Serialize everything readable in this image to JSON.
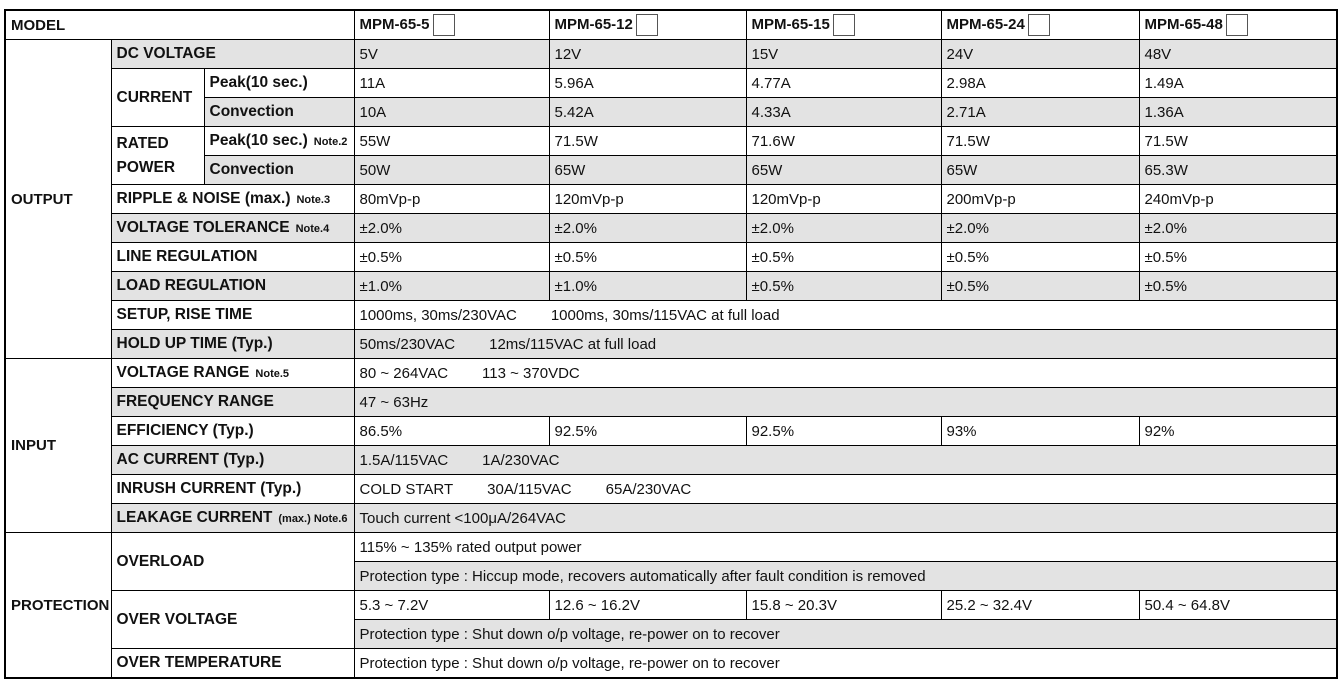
{
  "table": {
    "model_label": "MODEL",
    "models": [
      "MPM-65-5",
      "MPM-65-12",
      "MPM-65-15",
      "MPM-65-24",
      "MPM-65-48"
    ],
    "sections": [
      {
        "name": "OUTPUT",
        "items": [
          {
            "label": "DC VOLTAGE",
            "values": [
              "5V",
              "12V",
              "15V",
              "24V",
              "48V"
            ]
          },
          {
            "group": "CURRENT",
            "rows": [
              {
                "label": "Peak(10 sec.)",
                "values": [
                  "11A",
                  "5.96A",
                  "4.77A",
                  "2.98A",
                  "1.49A"
                ]
              },
              {
                "label": "Convection",
                "values": [
                  "10A",
                  "5.42A",
                  "4.33A",
                  "2.71A",
                  "1.36A"
                ]
              }
            ]
          },
          {
            "group": "RATED POWER",
            "rows": [
              {
                "label": "Peak(10 sec.)",
                "note": "Note.2",
                "values": [
                  "55W",
                  "71.5W",
                  "71.6W",
                  "71.5W",
                  "71.5W"
                ]
              },
              {
                "label": "Convection",
                "values": [
                  "50W",
                  "65W",
                  "65W",
                  "65W",
                  "65.3W"
                ]
              }
            ]
          },
          {
            "label": "RIPPLE & NOISE (max.)",
            "note": "Note.3",
            "values": [
              "80mVp-p",
              "120mVp-p",
              "120mVp-p",
              "200mVp-p",
              "240mVp-p"
            ]
          },
          {
            "label": "VOLTAGE TOLERANCE",
            "note": "Note.4",
            "values": [
              "±2.0%",
              "±2.0%",
              "±2.0%",
              "±2.0%",
              "±2.0%"
            ]
          },
          {
            "label": "LINE REGULATION",
            "values": [
              "±0.5%",
              "±0.5%",
              "±0.5%",
              "±0.5%",
              "±0.5%"
            ]
          },
          {
            "label": "LOAD REGULATION",
            "values": [
              "±1.0%",
              "±1.0%",
              "±0.5%",
              "±0.5%",
              "±0.5%"
            ]
          },
          {
            "label": "SETUP, RISE TIME",
            "parts": [
              "1000ms, 30ms/230VAC",
              "1000ms, 30ms/115VAC at full load"
            ]
          },
          {
            "label": "HOLD UP TIME (Typ.)",
            "parts": [
              "50ms/230VAC",
              "12ms/115VAC at full load"
            ]
          }
        ]
      },
      {
        "name": "INPUT",
        "items": [
          {
            "label": "VOLTAGE RANGE",
            "note": "Note.5",
            "parts": [
              "80 ~ 264VAC",
              "113 ~ 370VDC"
            ]
          },
          {
            "label": "FREQUENCY RANGE",
            "parts": [
              "47 ~ 63Hz"
            ]
          },
          {
            "label": "EFFICIENCY (Typ.)",
            "values": [
              "86.5%",
              "92.5%",
              "92.5%",
              "93%",
              "92%"
            ]
          },
          {
            "label": "AC CURRENT (Typ.)",
            "parts": [
              "1.5A/115VAC",
              "1A/230VAC"
            ]
          },
          {
            "label": "INRUSH CURRENT (Typ.)",
            "parts": [
              "COLD START",
              "30A/115VAC",
              "65A/230VAC"
            ]
          },
          {
            "label": "LEAKAGE CURRENT",
            "note": "(max.) Note.6",
            "parts": [
              "Touch current <100μA/264VAC"
            ]
          }
        ]
      },
      {
        "name": "PROTECTION",
        "items": [
          {
            "group": "OVERLOAD",
            "lines": [
              {
                "parts": [
                  "115% ~ 135% rated output power"
                ]
              },
              {
                "parts": [
                  "Protection type : Hiccup mode, recovers automatically after fault condition is removed"
                ]
              }
            ]
          },
          {
            "group": "OVER VOLTAGE",
            "lines": [
              {
                "values": [
                  "5.3 ~ 7.2V",
                  "12.6 ~ 16.2V",
                  "15.8 ~ 20.3V",
                  "25.2 ~ 32.4V",
                  "50.4 ~ 64.8V"
                ]
              },
              {
                "parts": [
                  "Protection type : Shut down o/p voltage, re-power on to recover"
                ]
              }
            ]
          },
          {
            "label": "OVER TEMPERATURE",
            "parts": [
              "Protection type : Shut down o/p voltage, re-power on to recover"
            ]
          }
        ]
      }
    ]
  }
}
